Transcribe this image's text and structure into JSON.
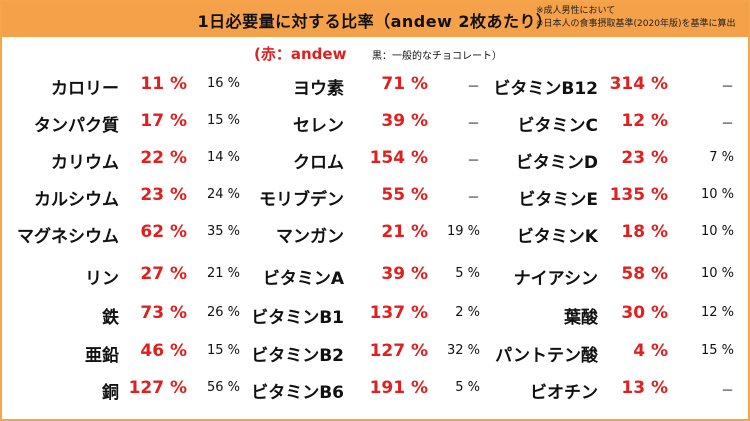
{
  "header": {
    "title": "1日必要量に対する比率（andew 2枚あたり）",
    "note1": "※成人男性において",
    "note2": "※日本人の食事摂取基準(2020年版)を基準に算出"
  },
  "legend": {
    "red_label": "(赤：andew",
    "black_label": "黒：一般的なチョコレート）"
  },
  "colors": {
    "header_bg": "#f4a14a",
    "andew_value": "#e02020",
    "chocolate_value": "#111111"
  },
  "rows": [
    {
      "n1": "カロリー",
      "v1": "11 %",
      "c1": "16 %",
      "n2": "ヨウ素",
      "v2": "71 %",
      "c2": "－",
      "n3": "ビタミンB12",
      "v3": "314 %",
      "c3": "－"
    },
    {
      "n1": "タンパク質",
      "v1": "17 %",
      "c1": "15 %",
      "n2": "セレン",
      "v2": "39 %",
      "c2": "－",
      "n3": "ビタミンC",
      "v3": "12 %",
      "c3": "－"
    },
    {
      "n1": "カリウム",
      "v1": "22 %",
      "c1": "14 %",
      "n2": "クロム",
      "v2": "154 %",
      "c2": "－",
      "n3": "ビタミンD",
      "v3": "23 %",
      "c3": "7 %"
    },
    {
      "n1": "カルシウム",
      "v1": "23 %",
      "c1": "24 %",
      "n2": "モリブデン",
      "v2": "55 %",
      "c2": "－",
      "n3": "ビタミンE",
      "v3": "135 %",
      "c3": "10 %"
    },
    {
      "n1": "マグネシウム",
      "v1": "62 %",
      "c1": "35 %",
      "n2": "マンガン",
      "v2": "21 %",
      "c2": "19 %",
      "n3": "ビタミンK",
      "v3": "18 %",
      "c3": "10 %"
    },
    {
      "n1": "リン",
      "v1": "27 %",
      "c1": "21 %",
      "n2": "ビタミンA",
      "v2": "39 %",
      "c2": "5 %",
      "n3": "ナイアシン",
      "v3": "58 %",
      "c3": "10 %"
    },
    {
      "n1": "鉄",
      "v1": "73 %",
      "c1": "26 %",
      "n2": "ビタミンB1",
      "v2": "137 %",
      "c2": "2 %",
      "n3": "葉酸",
      "v3": "30 %",
      "c3": "12 %"
    },
    {
      "n1": "亜鉛",
      "v1": "46 %",
      "c1": "15 %",
      "n2": "ビタミンB2",
      "v2": "127 %",
      "c2": "32 %",
      "n3": "パントテン酸",
      "v3": "4 %",
      "c3": "15 %"
    },
    {
      "n1": "銅",
      "v1": "127 %",
      "c1": "56 %",
      "n2": "ビタミンB6",
      "v2": "191 %",
      "c2": "5 %",
      "n3": "ビオチン",
      "v3": "13 %",
      "c3": "－"
    }
  ]
}
